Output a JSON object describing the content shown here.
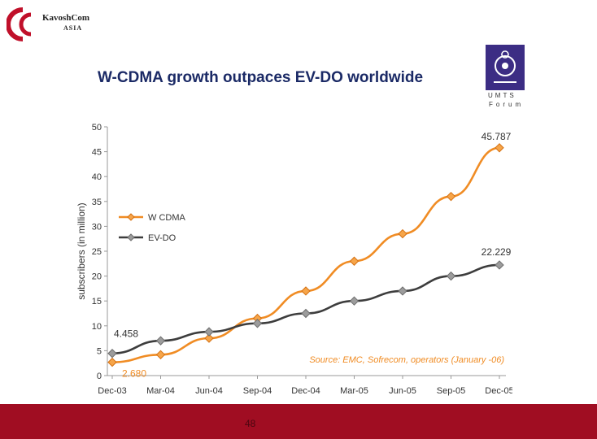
{
  "header": {
    "logo_name": "KavoshCom",
    "logo_sub": "ASIA",
    "umts_line1": "UMTS",
    "umts_line2": "Forum"
  },
  "slide": {
    "page_number": "48"
  },
  "colors": {
    "wcdma": "#f08c24",
    "evdo": "#3d3d3d",
    "footer": "#a00d22",
    "title": "#1b2a66"
  },
  "chart_data": {
    "type": "line",
    "title": "W-CDMA growth outpaces EV-DO worldwide",
    "ylabel": "subscribers   (in million)",
    "xlabel": "",
    "ylim": [
      0,
      50
    ],
    "yticks": [
      0,
      5,
      10,
      15,
      20,
      25,
      30,
      35,
      40,
      45,
      50
    ],
    "categories": [
      "Dec-03",
      "Mar-04",
      "Jun-04",
      "Sep-04",
      "Dec-04",
      "Mar-05",
      "Jun-05",
      "Sep-05",
      "Dec-05"
    ],
    "series": [
      {
        "name": "W CDMA",
        "values": [
          2.68,
          4.2,
          7.5,
          11.5,
          17.0,
          23.0,
          28.5,
          36.0,
          45.787
        ]
      },
      {
        "name": "EV-DO",
        "values": [
          4.458,
          7.0,
          8.8,
          10.5,
          12.5,
          15.0,
          17.0,
          20.0,
          22.229
        ]
      }
    ],
    "annotations": {
      "wcdma_end": "45.787",
      "evdo_end": "22.229",
      "evdo_start": "4.458",
      "wcdma_start": "2.680",
      "source": "Source: EMC, Sofrecom, operators (January -06)"
    },
    "legend_position": "left-middle"
  }
}
